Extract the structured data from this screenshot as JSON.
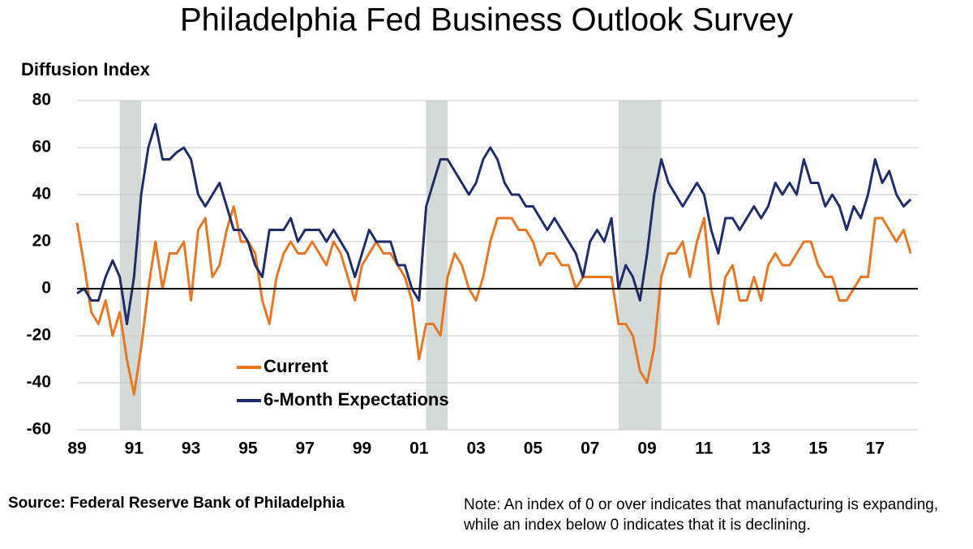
{
  "chart_data": {
    "type": "line",
    "title": "Philadelphia Fed Business Outlook Survey",
    "y_label": "Diffusion Index",
    "source": "Source: Federal Reserve Bank of Philadelphia",
    "note": "Note: An index of 0 or over indicates that manufacturing is expanding, while an index below 0 indicates that it is declining.",
    "categories": [
      "89",
      null,
      null,
      null,
      null,
      null,
      null,
      null,
      "91",
      null,
      null,
      null,
      null,
      null,
      null,
      null,
      "93",
      null,
      null,
      null,
      null,
      null,
      null,
      null,
      "95",
      null,
      null,
      null,
      null,
      null,
      null,
      null,
      "97",
      null,
      null,
      null,
      null,
      null,
      null,
      null,
      "99",
      null,
      null,
      null,
      null,
      null,
      null,
      null,
      "01",
      null,
      null,
      null,
      null,
      null,
      null,
      null,
      "03",
      null,
      null,
      null,
      null,
      null,
      null,
      null,
      "05",
      null,
      null,
      null,
      null,
      null,
      null,
      null,
      "07",
      null,
      null,
      null,
      null,
      null,
      null,
      null,
      "09",
      null,
      null,
      null,
      null,
      null,
      null,
      null,
      "11",
      null,
      null,
      null,
      null,
      null,
      null,
      null,
      "13",
      null,
      null,
      null,
      null,
      null,
      null,
      null,
      "15",
      null,
      null,
      null,
      null,
      null,
      null,
      null,
      "17",
      null,
      null,
      null,
      null,
      null
    ],
    "series": [
      {
        "name": "Current",
        "color": "#e87722",
        "values": [
          28,
          10,
          -10,
          -15,
          -5,
          -20,
          -10,
          -30,
          -45,
          -25,
          0,
          20,
          0,
          15,
          15,
          20,
          -5,
          25,
          30,
          5,
          10,
          25,
          35,
          20,
          20,
          15,
          -5,
          -15,
          5,
          15,
          20,
          15,
          15,
          20,
          15,
          10,
          20,
          15,
          5,
          -5,
          10,
          15,
          20,
          15,
          15,
          10,
          5,
          -5,
          -30,
          -15,
          -15,
          -20,
          5,
          15,
          10,
          0,
          -5,
          5,
          20,
          30,
          30,
          30,
          25,
          25,
          20,
          10,
          15,
          15,
          10,
          10,
          0,
          5,
          5,
          5,
          5,
          5,
          -15,
          -15,
          -20,
          -35,
          -40,
          -25,
          5,
          15,
          15,
          20,
          5,
          20,
          30,
          0,
          -15,
          5,
          10,
          -5,
          -5,
          5,
          -5,
          10,
          15,
          10,
          10,
          15,
          20,
          20,
          10,
          5,
          5,
          -5,
          -5,
          0,
          5,
          5,
          30,
          30,
          25,
          20,
          25,
          15
        ]
      },
      {
        "name": "6-Month Expectations",
        "color": "#1f2d6b",
        "values": [
          -2,
          0,
          -5,
          -5,
          5,
          12,
          5,
          -15,
          5,
          40,
          60,
          70,
          55,
          55,
          58,
          60,
          55,
          40,
          35,
          40,
          45,
          35,
          25,
          25,
          20,
          10,
          5,
          25,
          25,
          25,
          30,
          20,
          25,
          25,
          25,
          20,
          25,
          20,
          15,
          5,
          15,
          25,
          20,
          20,
          20,
          10,
          10,
          0,
          -5,
          35,
          45,
          55,
          55,
          50,
          45,
          40,
          45,
          55,
          60,
          55,
          45,
          40,
          40,
          35,
          35,
          30,
          25,
          30,
          25,
          20,
          15,
          5,
          20,
          25,
          20,
          30,
          0,
          10,
          5,
          -5,
          15,
          40,
          55,
          45,
          40,
          35,
          40,
          45,
          40,
          25,
          15,
          30,
          30,
          25,
          30,
          35,
          30,
          35,
          45,
          40,
          45,
          40,
          55,
          45,
          45,
          35,
          40,
          35,
          25,
          35,
          30,
          40,
          55,
          45,
          50,
          40,
          35,
          38
        ]
      }
    ],
    "shaded_ranges": [
      [
        6,
        9
      ],
      [
        49,
        52
      ],
      [
        76,
        82
      ]
    ],
    "ylim": [
      -60,
      80
    ],
    "yticks": [
      -60,
      -40,
      -20,
      0,
      20,
      40,
      60,
      80
    ],
    "grid": true,
    "legend": "lower left"
  }
}
